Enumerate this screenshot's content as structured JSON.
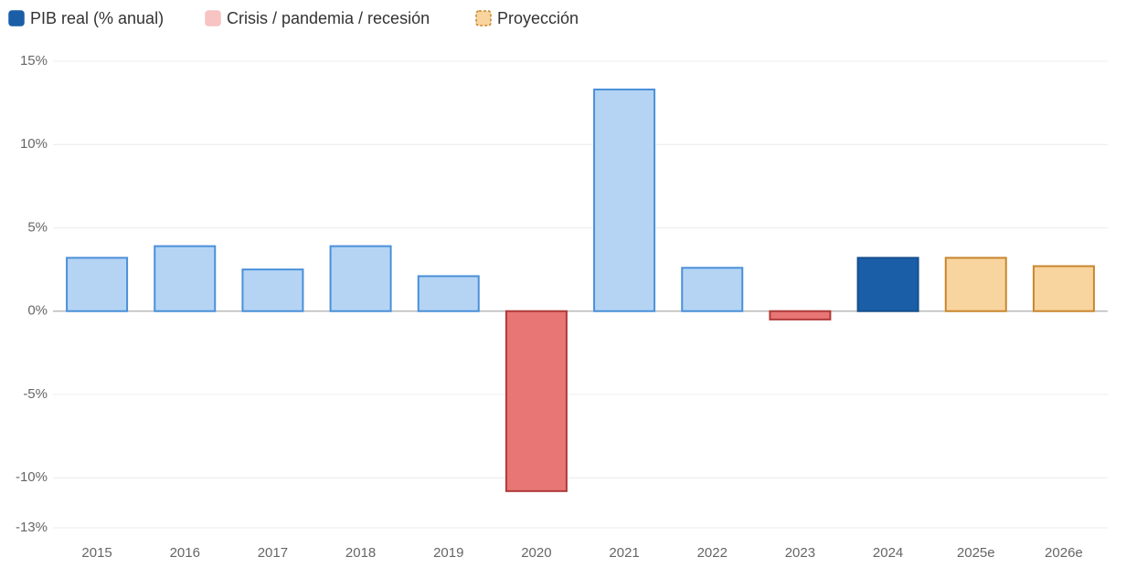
{
  "chart_data": {
    "type": "bar",
    "legend": [
      {
        "name": "PIB real (% anual)",
        "color": "#1a5ea8",
        "border": "#1a5ea8",
        "dashed": false
      },
      {
        "name": "Crisis / pandemia / recesión",
        "color": "#f7c3c3",
        "border": "#f7c3c3",
        "dashed": false
      },
      {
        "name": "Proyección",
        "color": "#f8d49e",
        "border": "#c8872e",
        "dashed": true
      }
    ],
    "categories": [
      "2015",
      "2016",
      "2017",
      "2018",
      "2019",
      "2020",
      "2021",
      "2022",
      "2023",
      "2024",
      "2025e",
      "2026e"
    ],
    "values": [
      3.2,
      3.9,
      2.5,
      3.9,
      2.1,
      -10.8,
      13.3,
      2.6,
      -0.5,
      3.2,
      3.2,
      2.7
    ],
    "colors": [
      "#b5d4f4",
      "#b5d4f4",
      "#b5d4f4",
      "#b5d4f4",
      "#b5d4f4",
      "#e87674",
      "#b5d4f4",
      "#b5d4f4",
      "#e87674",
      "#1a5ea8",
      "#f8d49e",
      "#f8d49e"
    ],
    "strokes": [
      "#4a90d9",
      "#4a90d9",
      "#4a90d9",
      "#4a90d9",
      "#4a90d9",
      "#b03a3a",
      "#4a90d9",
      "#4a90d9",
      "#b03a3a",
      "#174f8c",
      "#c8872e",
      "#c8872e"
    ],
    "ylim": [
      -13,
      15
    ],
    "yticks": [
      {
        "value": -13,
        "label": "-13%"
      },
      {
        "value": -10,
        "label": "-10%"
      },
      {
        "value": -5,
        "label": "-5%"
      },
      {
        "value": 0,
        "label": "0%"
      },
      {
        "value": 5,
        "label": "5%"
      },
      {
        "value": 10,
        "label": "10%"
      },
      {
        "value": 15,
        "label": "15%"
      }
    ],
    "grid": true
  }
}
